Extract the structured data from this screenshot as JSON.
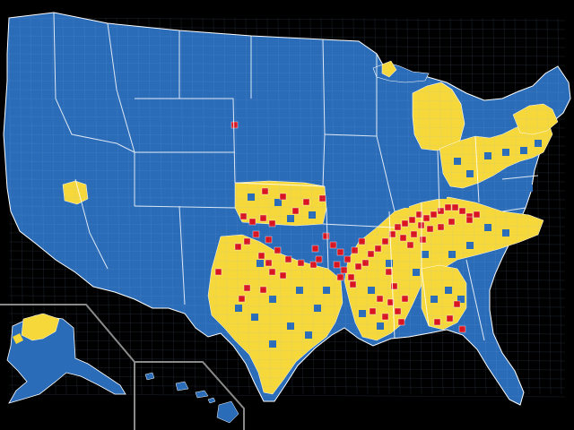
{
  "map": {
    "colors": {
      "background": "#000000",
      "category_blue": "#2a6cb8",
      "category_yellow": "#f7d83a",
      "category_red": "#d9141e",
      "border": "#ffffff",
      "inset_frame": "#8a8a8a"
    },
    "regions": [
      {
        "id": "contiguous-us",
        "category": "blue"
      },
      {
        "id": "alaska",
        "category": "blue"
      },
      {
        "id": "hawaii",
        "category": "blue"
      }
    ]
  }
}
